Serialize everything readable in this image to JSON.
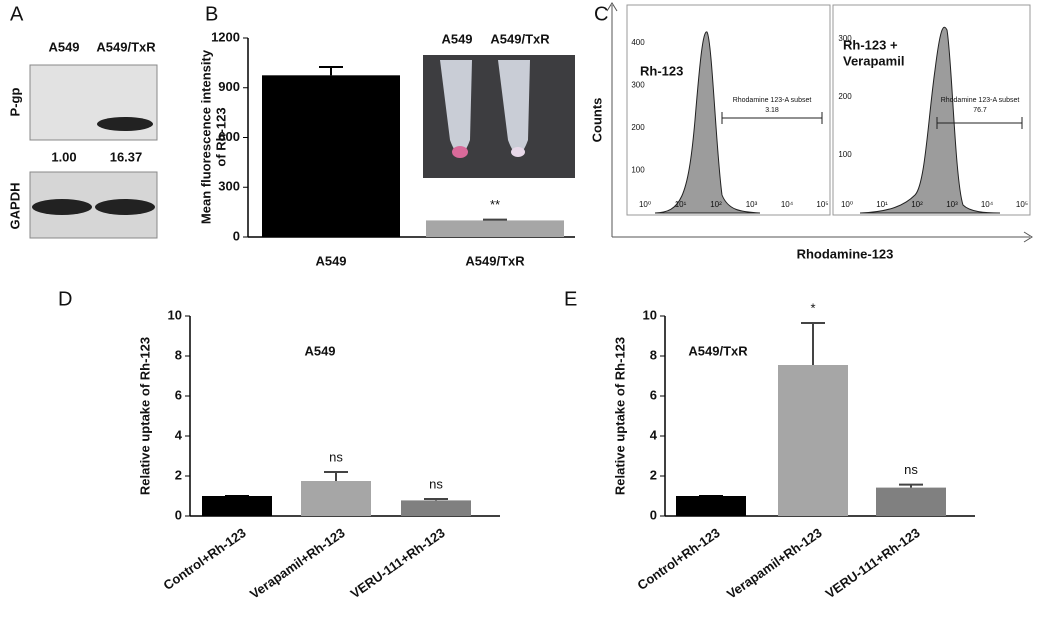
{
  "panels": [
    "A",
    "B",
    "C",
    "D",
    "E"
  ],
  "blot": {
    "columns": [
      "A549",
      "A549/TxR"
    ],
    "rows": [
      "P-gp",
      "GAPDH"
    ],
    "ratios": [
      "1.00",
      "16.37"
    ]
  },
  "flow": {
    "ylabel": "Counts",
    "xlabel": "Rhodamine-123",
    "xticks": [
      "10⁰",
      "10¹",
      "10²",
      "10³",
      "10⁴",
      "10⁵"
    ],
    "plots": [
      {
        "label": [
          "Rh-123"
        ],
        "yticks": [
          100,
          200,
          300,
          400
        ],
        "gate_label": "Rhodamine 123-A subset",
        "gate_value": 3.18
      },
      {
        "label": [
          "Rh-123 +",
          "Verapamil"
        ],
        "yticks": [
          100,
          200,
          300
        ],
        "gate_label": "Rhodamine 123-A subset",
        "gate_value": 76.7
      }
    ]
  },
  "chart_data": [
    {
      "type": "bar",
      "ylabel": [
        "Mean fluorescence intensity",
        "of Rh-123"
      ],
      "categories": [
        "A549",
        "A549/TxR"
      ],
      "values": [
        975,
        100
      ],
      "errors": [
        50,
        5
      ],
      "colors": [
        "#000000",
        "#a6a6a6"
      ],
      "annotations": [
        null,
        "**"
      ],
      "inset_labels": [
        "A549",
        "A549/TxR"
      ],
      "ylim": [
        0,
        1200
      ],
      "yticks": [
        0,
        300,
        600,
        900,
        1200
      ]
    },
    {
      "type": "bar",
      "title": "A549",
      "ylabel": [
        "Relative uptake of Rh-123"
      ],
      "categories": [
        "Control+Rh-123",
        "Verapamil+Rh-123",
        "VERU-111+Rh-123"
      ],
      "values": [
        1,
        1.75,
        0.78
      ],
      "errors": [
        0,
        0.45,
        0.07
      ],
      "colors": [
        "#000000",
        "#a6a6a6",
        "#808080"
      ],
      "annotations": [
        null,
        "ns",
        "ns"
      ],
      "ylim": [
        0,
        10
      ],
      "yticks": [
        0,
        2,
        4,
        6,
        8,
        10
      ]
    },
    {
      "type": "bar",
      "title": "A549/TxR",
      "ylabel": [
        "Relative uptake of Rh-123"
      ],
      "categories": [
        "Control+Rh-123",
        "Verapamil+Rh-123",
        "VERU-111+Rh-123"
      ],
      "values": [
        1,
        7.55,
        1.42
      ],
      "errors": [
        0,
        2.1,
        0.15
      ],
      "colors": [
        "#000000",
        "#a6a6a6",
        "#808080"
      ],
      "annotations": [
        null,
        "*",
        "ns"
      ],
      "ylim": [
        0,
        10
      ],
      "yticks": [
        0,
        2,
        4,
        6,
        8,
        10
      ]
    }
  ]
}
